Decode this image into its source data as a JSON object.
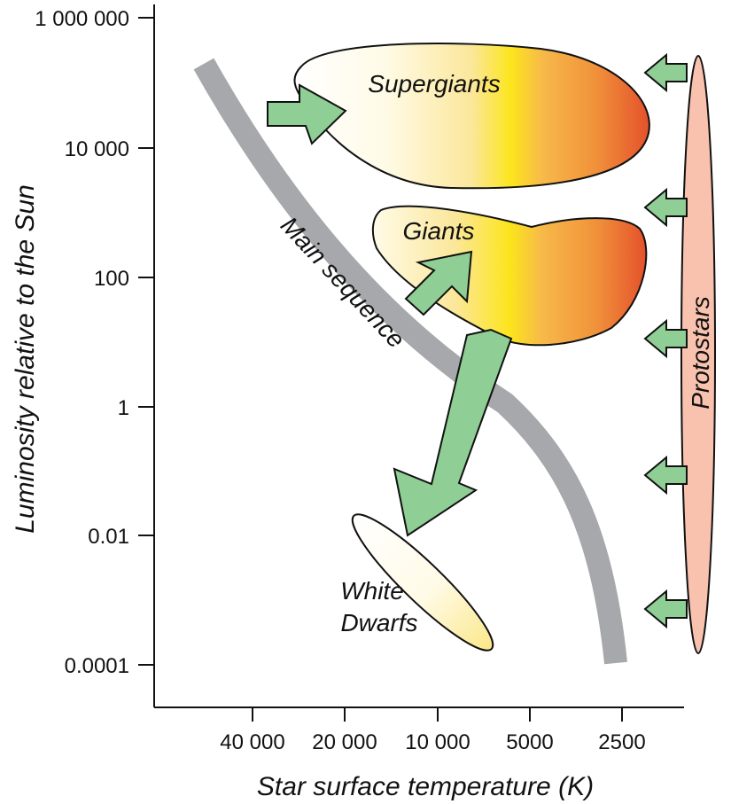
{
  "axes": {
    "y_label": "Luminosity relative to the Sun",
    "x_label": "Star surface temperature (K)",
    "y_ticks": [
      "1 000 000",
      "10 000",
      "100",
      "1",
      "0.01",
      "0.0001"
    ],
    "x_ticks": [
      "40 000",
      "20 000",
      "10 000",
      "5000",
      "2500"
    ]
  },
  "regions": {
    "supergiants": "Supergiants",
    "giants": "Giants",
    "main_sequence": "Main sequence",
    "white_dwarfs_line1": "White",
    "white_dwarfs_line2": "Dwarfs",
    "protostars": "Protostars"
  },
  "colors": {
    "arrow_fill": "#8fce94",
    "main_sequence": "#a7a8ab",
    "protostar_fill": "#f8c2ae",
    "gradient_light": "#fffbe8",
    "gradient_yellow": "#fce51c",
    "gradient_orange": "#f0913a",
    "gradient_red": "#e5512b"
  }
}
